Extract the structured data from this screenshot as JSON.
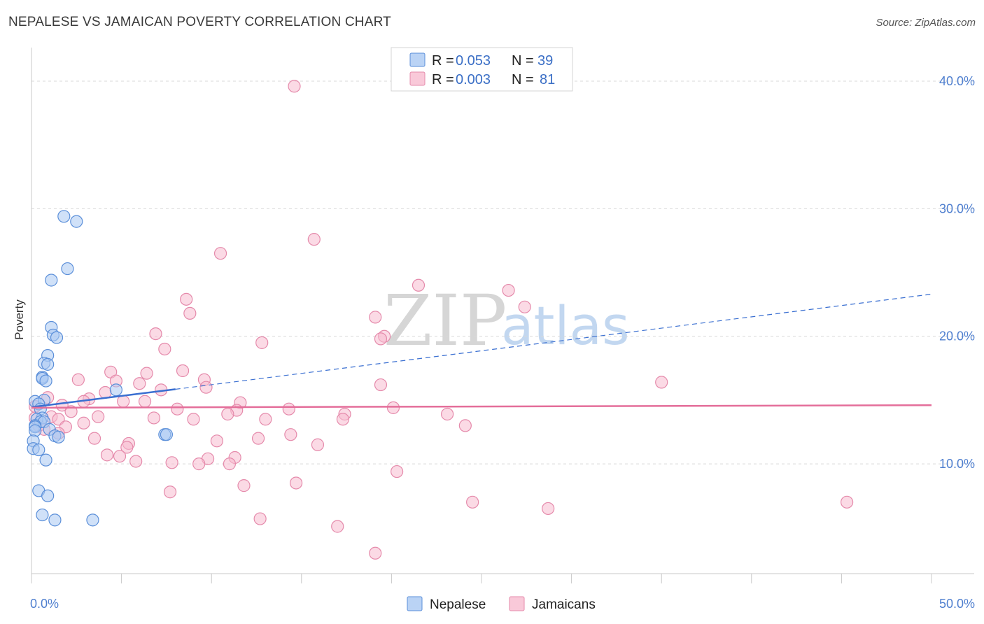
{
  "header": {
    "title": "NEPALESE VS JAMAICAN POVERTY CORRELATION CHART",
    "source": "Source: ZipAtlas.com"
  },
  "watermark": {
    "zip": "ZIP",
    "atlas": "atlas"
  },
  "colors": {
    "nepalese_fill": "#a9c8f2",
    "nepalese_stroke": "#5b8fd9",
    "nepalese_line": "#3a6fd1",
    "jamaican_fill": "#f7bcd0",
    "jamaican_stroke": "#e58aab",
    "jamaican_line": "#e46e9a",
    "grid": "#d8d8d8",
    "tick_text": "#4f7fcf"
  },
  "legend": {
    "r_label": "R =",
    "n_label": "N =",
    "rows": [
      {
        "series": "Nepalese",
        "r": "0.053",
        "n": "39"
      },
      {
        "series": "Jamaicans",
        "r": "0.003",
        "n": "81"
      }
    ]
  },
  "chart_data": {
    "type": "scatter",
    "title": "NEPALESE VS JAMAICAN POVERTY CORRELATION CHART",
    "xlabel": "",
    "ylabel": "Poverty",
    "xlim": [
      0,
      50
    ],
    "ylim": [
      0,
      42
    ],
    "x_end_labels": [
      "0.0%",
      "50.0%"
    ],
    "y_ticks": [
      10,
      20,
      30,
      40
    ],
    "y_tick_labels": [
      "10.0%",
      "20.0%",
      "30.0%",
      "40.0%"
    ],
    "grid": true,
    "series": [
      {
        "name": "Nepalese",
        "points": [
          [
            1.8,
            29.4
          ],
          [
            2.5,
            29.0
          ],
          [
            2.0,
            25.3
          ],
          [
            1.1,
            24.4
          ],
          [
            1.1,
            20.7
          ],
          [
            1.2,
            20.1
          ],
          [
            1.4,
            19.9
          ],
          [
            0.9,
            18.5
          ],
          [
            0.7,
            17.9
          ],
          [
            0.9,
            17.8
          ],
          [
            0.6,
            16.8
          ],
          [
            0.6,
            16.7
          ],
          [
            0.8,
            16.5
          ],
          [
            4.7,
            15.8
          ],
          [
            0.2,
            14.9
          ],
          [
            0.7,
            15.0
          ],
          [
            0.4,
            14.7
          ],
          [
            0.5,
            14.3
          ],
          [
            0.6,
            13.6
          ],
          [
            0.3,
            13.5
          ],
          [
            0.5,
            13.3
          ],
          [
            0.7,
            13.3
          ],
          [
            0.2,
            13.0
          ],
          [
            0.2,
            12.9
          ],
          [
            0.2,
            12.6
          ],
          [
            1.0,
            12.7
          ],
          [
            1.3,
            12.2
          ],
          [
            1.5,
            12.1
          ],
          [
            7.4,
            12.3
          ],
          [
            7.5,
            12.3
          ],
          [
            0.1,
            11.8
          ],
          [
            0.1,
            11.2
          ],
          [
            0.4,
            11.1
          ],
          [
            0.8,
            10.3
          ],
          [
            0.4,
            7.9
          ],
          [
            0.9,
            7.5
          ],
          [
            0.6,
            6.0
          ],
          [
            1.3,
            5.6
          ],
          [
            3.4,
            5.6
          ]
        ],
        "trend": {
          "x0": 0,
          "y0": 14.45,
          "x1": 8,
          "y1": 15.85,
          "dashed_to_x": 50,
          "dashed_to_y": 23.3
        }
      },
      {
        "name": "Jamaicans",
        "points": [
          [
            14.6,
            39.6
          ],
          [
            15.7,
            27.6
          ],
          [
            10.5,
            26.5
          ],
          [
            21.5,
            24.0
          ],
          [
            26.5,
            23.6
          ],
          [
            8.6,
            22.9
          ],
          [
            27.4,
            22.3
          ],
          [
            8.8,
            21.8
          ],
          [
            19.1,
            21.5
          ],
          [
            19.6,
            20.0
          ],
          [
            19.4,
            19.8
          ],
          [
            6.9,
            20.2
          ],
          [
            12.8,
            19.5
          ],
          [
            7.4,
            19.0
          ],
          [
            4.4,
            17.2
          ],
          [
            8.4,
            17.3
          ],
          [
            6.4,
            17.1
          ],
          [
            2.6,
            16.6
          ],
          [
            4.7,
            16.5
          ],
          [
            9.6,
            16.6
          ],
          [
            6.0,
            16.3
          ],
          [
            19.4,
            16.2
          ],
          [
            35.0,
            16.4
          ],
          [
            9.7,
            16.0
          ],
          [
            7.2,
            15.8
          ],
          [
            4.1,
            15.6
          ],
          [
            0.9,
            15.2
          ],
          [
            3.2,
            15.1
          ],
          [
            2.9,
            14.9
          ],
          [
            5.1,
            14.9
          ],
          [
            6.3,
            14.9
          ],
          [
            11.6,
            14.8
          ],
          [
            1.7,
            14.6
          ],
          [
            0.2,
            14.5
          ],
          [
            8.1,
            14.3
          ],
          [
            11.4,
            14.2
          ],
          [
            14.3,
            14.3
          ],
          [
            20.1,
            14.4
          ],
          [
            2.2,
            14.1
          ],
          [
            10.9,
            13.9
          ],
          [
            17.4,
            13.9
          ],
          [
            23.1,
            13.9
          ],
          [
            1.1,
            13.7
          ],
          [
            3.7,
            13.7
          ],
          [
            0.2,
            13.6
          ],
          [
            1.5,
            13.5
          ],
          [
            6.8,
            13.6
          ],
          [
            9.0,
            13.5
          ],
          [
            13.0,
            13.5
          ],
          [
            17.3,
            13.5
          ],
          [
            2.9,
            13.2
          ],
          [
            0.4,
            13.0
          ],
          [
            1.9,
            12.9
          ],
          [
            24.1,
            13.0
          ],
          [
            0.7,
            12.7
          ],
          [
            14.4,
            12.3
          ],
          [
            3.5,
            12.0
          ],
          [
            12.6,
            12.0
          ],
          [
            10.3,
            11.8
          ],
          [
            15.9,
            11.5
          ],
          [
            5.4,
            11.6
          ],
          [
            5.3,
            11.3
          ],
          [
            4.2,
            10.7
          ],
          [
            4.9,
            10.6
          ],
          [
            9.8,
            10.4
          ],
          [
            11.3,
            10.5
          ],
          [
            5.8,
            10.2
          ],
          [
            7.8,
            10.1
          ],
          [
            9.3,
            10.0
          ],
          [
            11.0,
            10.0
          ],
          [
            20.3,
            9.4
          ],
          [
            14.7,
            8.5
          ],
          [
            11.8,
            8.3
          ],
          [
            7.7,
            7.8
          ],
          [
            24.5,
            7.0
          ],
          [
            28.7,
            6.5
          ],
          [
            45.3,
            7.0
          ],
          [
            12.7,
            5.7
          ],
          [
            17.0,
            5.1
          ],
          [
            19.1,
            3.0
          ],
          [
            1.5,
            12.4
          ]
        ],
        "trend": {
          "x0": 0,
          "y0": 14.4,
          "x1": 50,
          "y1": 14.6
        }
      }
    ]
  }
}
